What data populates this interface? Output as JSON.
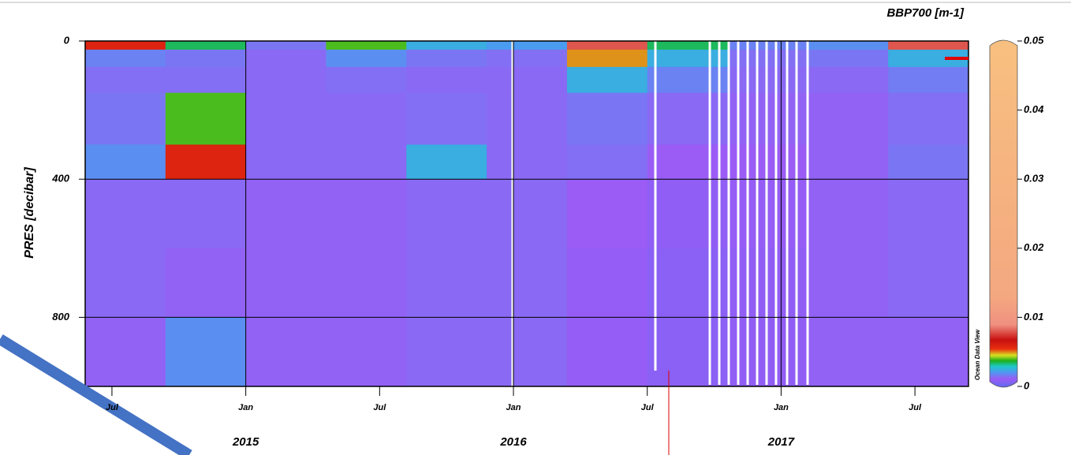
{
  "chart_data": {
    "type": "heatmap",
    "colorbar_title": "BBP700 [m-1]",
    "y_label": "PRES [decibar]",
    "watermark": "Ocean Data View",
    "xlim": [
      2014.4,
      2017.7
    ],
    "xticks": [
      {
        "value": 2014.5,
        "label": "Jul"
      },
      {
        "value": 2015,
        "label": "Jan"
      },
      {
        "value": 2015.5,
        "label": "Jul"
      },
      {
        "value": 2016,
        "label": "Jan"
      },
      {
        "value": 2016.5,
        "label": "Jul"
      },
      {
        "value": 2017,
        "label": "Jan"
      },
      {
        "value": 2017.5,
        "label": "Jul"
      }
    ],
    "year_labels": [
      2015,
      2016,
      2017
    ],
    "ylim": [
      1000,
      0
    ],
    "yticks": [
      0,
      400,
      800
    ],
    "grid": true,
    "clim": [
      0,
      0.05
    ],
    "cticks": [
      0,
      0.01,
      0.02,
      0.03,
      0.04,
      0.05
    ],
    "colormap": [
      [
        0,
        "#5f6af0"
      ],
      [
        0.0012,
        "#9a5cf5"
      ],
      [
        0.0022,
        "#4a9cf0"
      ],
      [
        0.003,
        "#1ec8c8"
      ],
      [
        0.0038,
        "#1cb01c"
      ],
      [
        0.0046,
        "#d8e020"
      ],
      [
        0.0055,
        "#e83010"
      ],
      [
        0.0068,
        "#c81010"
      ],
      [
        0.009,
        "#f09080"
      ],
      [
        0.013,
        "#f4a880"
      ],
      [
        0.05,
        "#f8c080"
      ]
    ],
    "x_edges": [
      2014.4,
      2014.7,
      2015.0,
      2015.3,
      2015.6,
      2015.9,
      2016.2,
      2016.5,
      2016.8,
      2017.1,
      2017.4,
      2017.7
    ],
    "y_edges": [
      0,
      25,
      75,
      150,
      300,
      400,
      600,
      800,
      1000
    ],
    "z": [
      [
        0.006,
        0.0035,
        0.0016,
        0.004,
        0.0025,
        0.0022,
        0.008,
        0.0035,
        0.0018,
        0.002,
        0.008
      ],
      [
        0.0018,
        0.0016,
        0.0014,
        0.002,
        0.0016,
        0.0015,
        0.005,
        0.0025,
        0.0015,
        0.0016,
        0.0025
      ],
      [
        0.0015,
        0.0015,
        0.0014,
        0.0015,
        0.0014,
        0.0014,
        0.0025,
        0.0018,
        0.0014,
        0.0014,
        0.0017
      ],
      [
        0.0016,
        0.004,
        0.0014,
        0.0014,
        0.0015,
        0.0014,
        0.0016,
        0.0014,
        0.0013,
        0.0013,
        0.0015
      ],
      [
        0.002,
        0.006,
        0.0014,
        0.0014,
        0.0025,
        0.0014,
        0.0015,
        0.0012,
        0.0012,
        0.0013,
        0.0016
      ],
      [
        0.0014,
        0.0014,
        0.0013,
        0.0013,
        0.0014,
        0.0014,
        0.0012,
        0.001,
        0.0011,
        0.0013,
        0.0014
      ],
      [
        0.0014,
        0.0013,
        0.0013,
        0.0013,
        0.0014,
        0.0014,
        0.0011,
        0.0009,
        0.001,
        0.0013,
        0.0014
      ],
      [
        0.0013,
        0.002,
        0.0013,
        0.0013,
        0.0014,
        0.0014,
        0.0011,
        0.0009,
        0.001,
        0.0013,
        0.0013
      ]
    ]
  }
}
